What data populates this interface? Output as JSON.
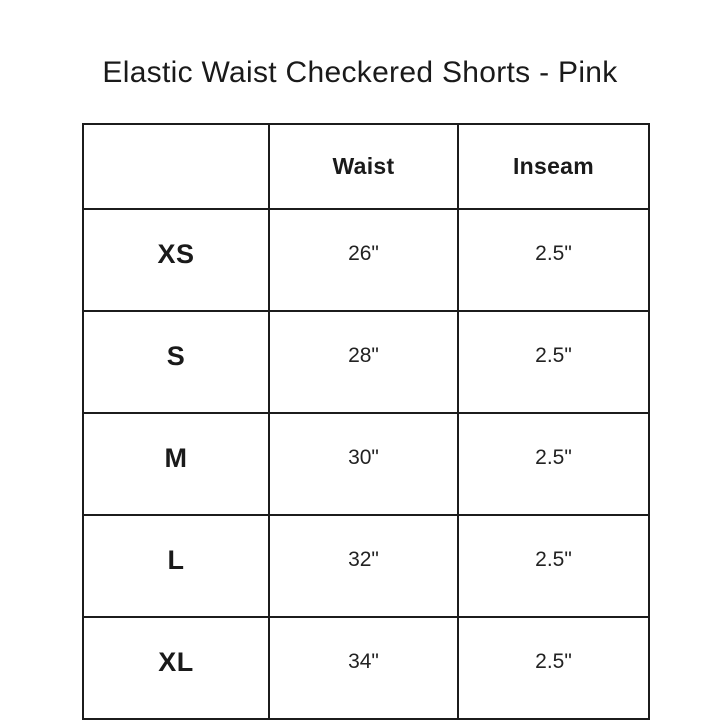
{
  "title": "Elastic Waist Checkered Shorts - Pink",
  "chart_data": {
    "type": "table",
    "title": "Elastic Waist Checkered Shorts - Pink",
    "columns": [
      "",
      "Waist",
      "Inseam"
    ],
    "rows": [
      {
        "size": "XS",
        "waist": "26\"",
        "inseam": "2.5\""
      },
      {
        "size": "S",
        "waist": "28\"",
        "inseam": "2.5\""
      },
      {
        "size": "M",
        "waist": "30\"",
        "inseam": "2.5\""
      },
      {
        "size": "L",
        "waist": "32\"",
        "inseam": "2.5\""
      },
      {
        "size": "XL",
        "waist": "34\"",
        "inseam": "2.5\""
      }
    ],
    "layout": {
      "grid": "all-borders",
      "legend": "none",
      "header_style": "bold",
      "size_column_style": "bold"
    }
  },
  "colors": {
    "background": "#ffffff",
    "text": "#1a1a1a",
    "border": "#1c1c1c"
  }
}
